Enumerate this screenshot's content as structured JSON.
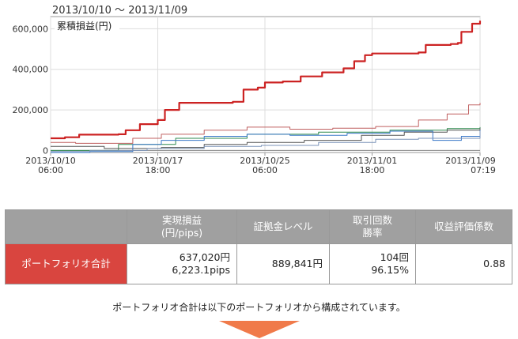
{
  "header": {
    "date_range": "2013/10/10 ～ 2013/11/09"
  },
  "chart_data": {
    "type": "line",
    "title": "累積損益(円)",
    "ylim": [
      -10000,
      660000
    ],
    "yticks": [
      {
        "value": 0,
        "label": "0"
      },
      {
        "value": 200000,
        "label": "200,000"
      },
      {
        "value": 400000,
        "label": "400,000"
      },
      {
        "value": 600000,
        "label": "600,000"
      }
    ],
    "xlim": [
      "2013-10-10 06:00",
      "2013-11-09 07:19"
    ],
    "xticks": [
      {
        "value": "2013-10-10 06:00",
        "line1": "2013/10/10",
        "line2": "06:00"
      },
      {
        "value": "2013-10-17 18:00",
        "line1": "2013/10/17",
        "line2": "18:00"
      },
      {
        "value": "2013-10-25 06:00",
        "line1": "2013/10/25",
        "line2": "06:00"
      },
      {
        "value": "2013-11-01 18:00",
        "line1": "2013/11/01",
        "line2": "18:00"
      },
      {
        "value": "2013-11-09 07:19",
        "line1": "2013/11/09",
        "line2": "07:19"
      }
    ],
    "grid": true,
    "series": [
      {
        "color": "#cc2222",
        "width": 2.2,
        "points": [
          [
            "2013-10-10 06:00",
            60000
          ],
          [
            "2013-10-11 06:00",
            65000
          ],
          [
            "2013-10-12 06:00",
            78000
          ],
          [
            "2013-10-15 00:00",
            80000
          ],
          [
            "2013-10-15 12:00",
            100000
          ],
          [
            "2013-10-16 12:00",
            130000
          ],
          [
            "2013-10-17 18:00",
            150000
          ],
          [
            "2013-10-18 06:00",
            200000
          ],
          [
            "2013-10-19 06:00",
            235000
          ],
          [
            "2013-10-23 00:00",
            240000
          ],
          [
            "2013-10-23 18:00",
            300000
          ],
          [
            "2013-10-24 18:00",
            310000
          ],
          [
            "2013-10-25 06:00",
            335000
          ],
          [
            "2013-10-26 12:00",
            340000
          ],
          [
            "2013-10-27 18:00",
            365000
          ],
          [
            "2013-10-29 06:00",
            385000
          ],
          [
            "2013-10-30 18:00",
            405000
          ],
          [
            "2013-10-31 12:00",
            440000
          ],
          [
            "2013-11-01 06:00",
            470000
          ],
          [
            "2013-11-01 18:00",
            478000
          ],
          [
            "2013-11-05 00:00",
            483000
          ],
          [
            "2013-11-05 12:00",
            520000
          ],
          [
            "2013-11-07 06:00",
            525000
          ],
          [
            "2013-11-07 18:00",
            530000
          ],
          [
            "2013-11-08 00:00",
            585000
          ],
          [
            "2013-11-08 18:00",
            625000
          ],
          [
            "2013-11-09 07:19",
            640000
          ]
        ]
      },
      {
        "color": "#c06060",
        "width": 1,
        "points": [
          [
            "2013-10-10 06:00",
            40000
          ],
          [
            "2013-10-12 00:00",
            35000
          ],
          [
            "2013-10-16 00:00",
            60000
          ],
          [
            "2013-10-18 00:00",
            80000
          ],
          [
            "2013-10-21 00:00",
            100000
          ],
          [
            "2013-10-24 00:00",
            115000
          ],
          [
            "2013-10-27 00:00",
            105000
          ],
          [
            "2013-10-30 00:00",
            110000
          ],
          [
            "2013-11-02 00:00",
            118000
          ],
          [
            "2013-11-05 00:00",
            150000
          ],
          [
            "2013-11-07 00:00",
            180000
          ],
          [
            "2013-11-08 12:00",
            225000
          ],
          [
            "2013-11-09 07:19",
            235000
          ]
        ]
      },
      {
        "color": "#2f8a4f",
        "width": 1,
        "points": [
          [
            "2013-10-10 06:00",
            0
          ],
          [
            "2013-10-15 00:00",
            30000
          ],
          [
            "2013-10-19 00:00",
            60000
          ],
          [
            "2013-10-24 00:00",
            80000
          ],
          [
            "2013-10-29 00:00",
            90000
          ],
          [
            "2013-11-03 00:00",
            100000
          ],
          [
            "2013-11-07 00:00",
            108000
          ],
          [
            "2013-11-09 07:19",
            115000
          ]
        ]
      },
      {
        "color": "#555555",
        "width": 1,
        "points": [
          [
            "2013-10-10 06:00",
            20000
          ],
          [
            "2013-10-14 00:00",
            10000
          ],
          [
            "2013-10-18 00:00",
            15000
          ],
          [
            "2013-10-21 00:00",
            30000
          ],
          [
            "2013-10-24 00:00",
            40000
          ],
          [
            "2013-10-28 00:00",
            50000
          ],
          [
            "2013-11-01 00:00",
            75000
          ],
          [
            "2013-11-04 00:00",
            90000
          ],
          [
            "2013-11-07 00:00",
            100000
          ],
          [
            "2013-11-09 07:19",
            110000
          ]
        ]
      },
      {
        "color": "#3a78c8",
        "width": 1,
        "points": [
          [
            "2013-10-10 06:00",
            -10000
          ],
          [
            "2013-10-13 00:00",
            -5000
          ],
          [
            "2013-10-16 00:00",
            30000
          ],
          [
            "2013-10-18 00:00",
            50000
          ],
          [
            "2013-10-21 00:00",
            70000
          ],
          [
            "2013-10-24 00:00",
            80000
          ],
          [
            "2013-10-27 00:00",
            75000
          ],
          [
            "2013-10-31 00:00",
            85000
          ],
          [
            "2013-11-03 00:00",
            95000
          ],
          [
            "2013-11-06 00:00",
            50000
          ],
          [
            "2013-11-08 00:00",
            70000
          ],
          [
            "2013-11-09 07:19",
            100000
          ]
        ]
      },
      {
        "color": "#7b93b8",
        "width": 1,
        "points": [
          [
            "2013-10-10 06:00",
            -5000
          ],
          [
            "2013-10-13 00:00",
            0
          ],
          [
            "2013-10-17 00:00",
            10000
          ],
          [
            "2013-10-21 00:00",
            20000
          ],
          [
            "2013-10-25 00:00",
            25000
          ],
          [
            "2013-10-29 00:00",
            40000
          ],
          [
            "2013-11-02 00:00",
            55000
          ],
          [
            "2013-11-05 00:00",
            60000
          ],
          [
            "2013-11-09 07:19",
            95000
          ]
        ]
      }
    ]
  },
  "table": {
    "headers": {
      "pl_line1": "実現損益",
      "pl_line2": "(円/pips)",
      "margin": "証拠金レベル",
      "trades_line1": "取引回数",
      "trades_line2": "勝率",
      "coef": "収益評価係数"
    },
    "row": {
      "name": "ポートフォリオ合計",
      "pl_yen": "637,020円",
      "pl_pips": "6,223.1pips",
      "margin": "889,841円",
      "trades": "104回",
      "win_rate": "96.15%",
      "coef": "0.88"
    }
  },
  "note": "ポートフォリオ合計は以下のポートフォリオから構成されています。",
  "colors": {
    "accent": "#d9453f",
    "header_bg": "#a0a0a0",
    "arrow": "#f07a4a"
  }
}
